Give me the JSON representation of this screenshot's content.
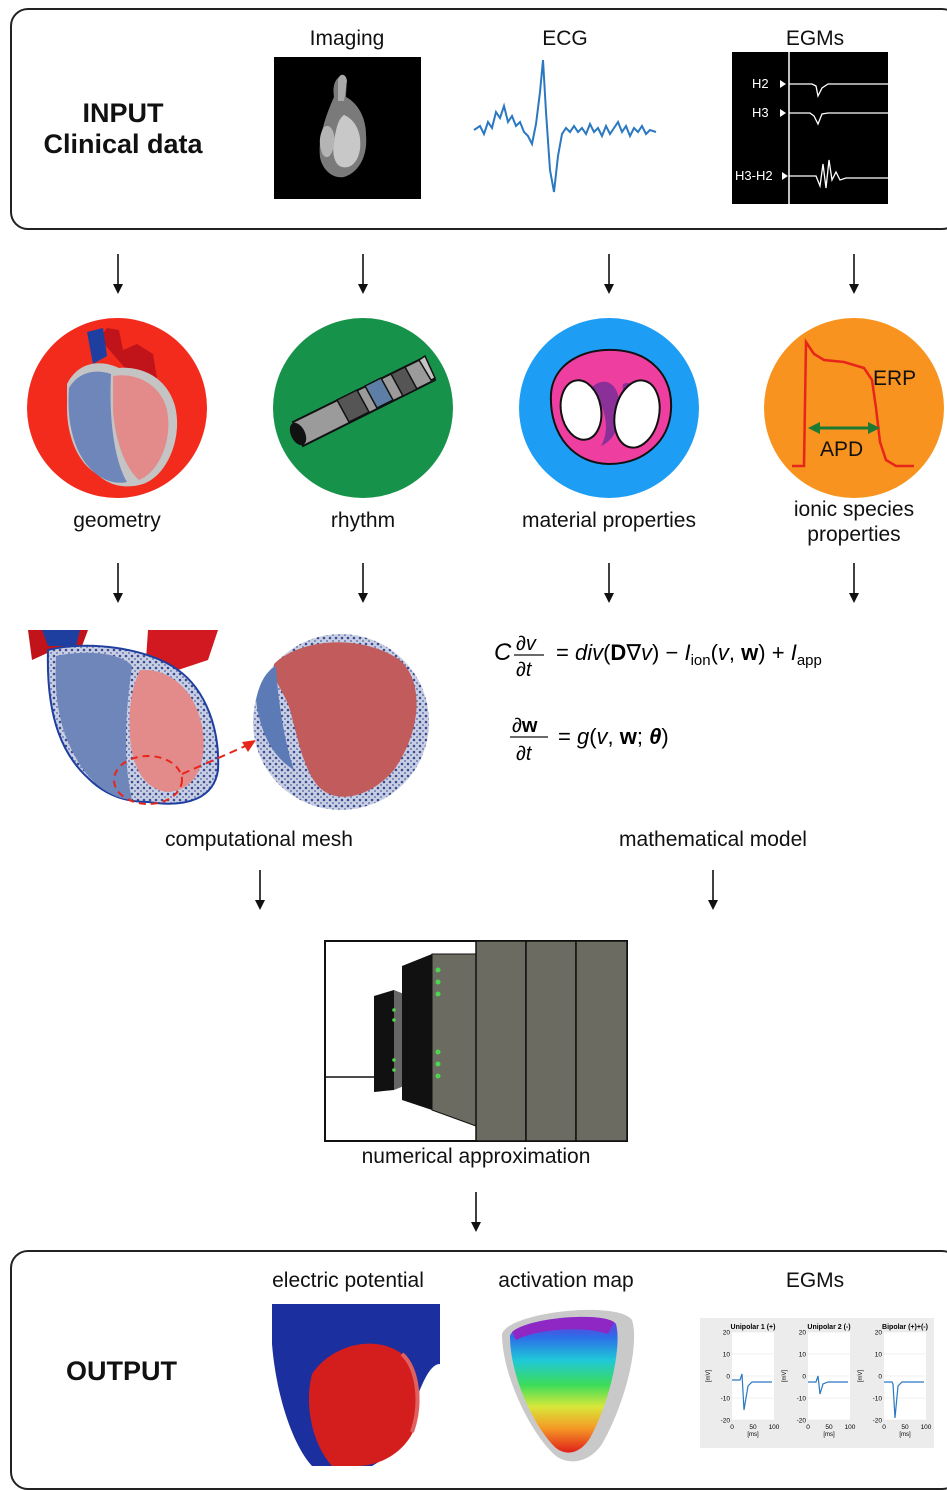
{
  "input_panel": {
    "title_line1": "INPUT",
    "title_line2": "Clinical data",
    "imaging_label": "Imaging",
    "ecg_label": "ECG",
    "egms_label": "EGMs",
    "egm_channels": [
      "H2",
      "H3",
      "H3-H2"
    ]
  },
  "circles": {
    "geometry": "geometry",
    "rhythm": "rhythm",
    "material": "material properties",
    "ionic_line1": "ionic species",
    "ionic_line2": "properties",
    "erp": "ERP",
    "apd": "APD"
  },
  "middle": {
    "mesh_label": "computational mesh",
    "model_label": "mathematical model",
    "numerical_label": "numerical approximation"
  },
  "output_panel": {
    "title": "OUTPUT",
    "electric_label": "electric potential",
    "activation_label": "activation map",
    "egms_label": "EGMs",
    "plots": [
      {
        "title": "Unipolar 1 (+)"
      },
      {
        "title": "Unipolar 2 (-)"
      },
      {
        "title": "Bipolar (+)+(-)"
      }
    ],
    "y_ticks": [
      "20",
      "10",
      "0",
      "-10",
      "-20"
    ],
    "x_ticks": [
      "0",
      "50",
      "100"
    ],
    "y_unit": "[mV]",
    "x_unit": "[ms]"
  },
  "colors": {
    "geometry_bg": "#f22b1c",
    "rhythm_bg": "#17924a",
    "material_bg": "#1e9df5",
    "ionic_bg": "#f7931e",
    "ecg_line": "#2a78c2"
  }
}
